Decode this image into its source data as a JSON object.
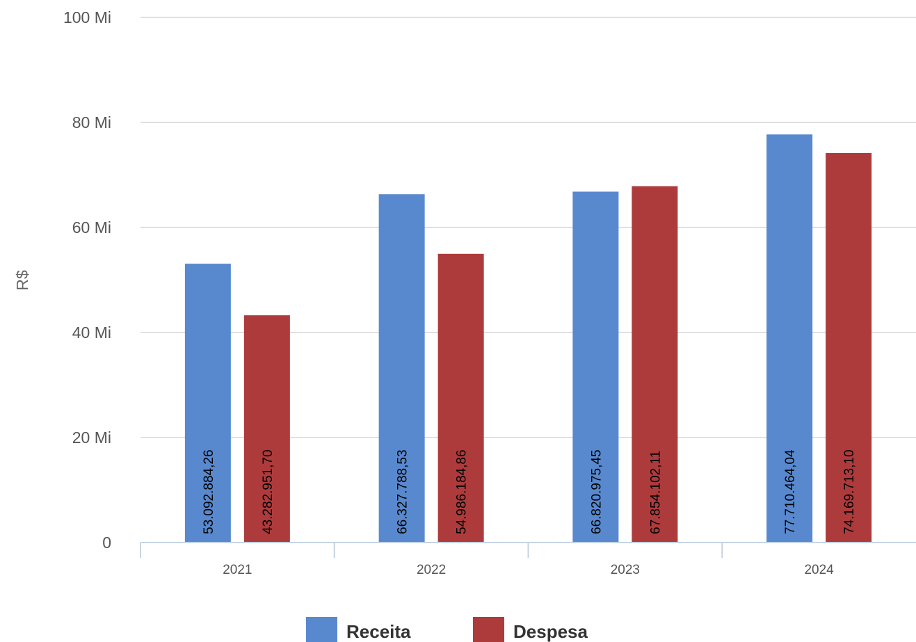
{
  "chart_data": {
    "type": "bar",
    "categories": [
      "2021",
      "2022",
      "2023",
      "2024"
    ],
    "series": [
      {
        "name": "Receita",
        "color": "#5889cf",
        "values": [
          53092884.26,
          66327788.53,
          66820975.45,
          77710464.04
        ],
        "labels": [
          "53.092.884,26",
          "66.327.788,53",
          "66.820.975,45",
          "77.710.464,04"
        ]
      },
      {
        "name": "Despesa",
        "color": "#ae3b3c",
        "values": [
          43282951.7,
          54986184.86,
          67854102.11,
          74169713.1
        ],
        "labels": [
          "43.282.951,70",
          "54.986.184,86",
          "67.854.102,11",
          "74.169.713,10"
        ]
      }
    ],
    "ylabel": "R$",
    "ylim": [
      0,
      100000000
    ],
    "yticks": [
      0,
      20000000,
      40000000,
      60000000,
      80000000,
      100000000
    ],
    "ytick_labels": [
      "0",
      "20 Mi",
      "40 Mi",
      "60 Mi",
      "80 Mi",
      "100 Mi"
    ],
    "grid": true,
    "legend_position": "bottom"
  }
}
